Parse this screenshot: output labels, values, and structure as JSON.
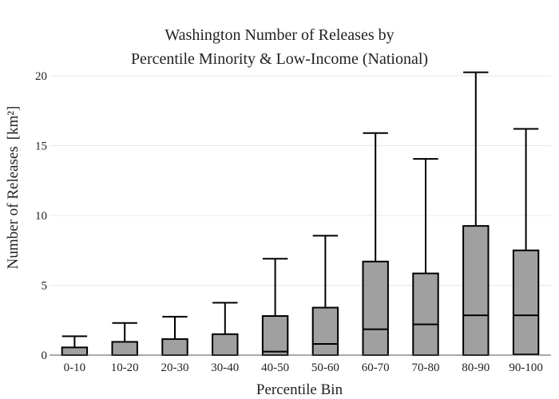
{
  "chart_data": {
    "type": "box",
    "title_lines": [
      "Washington Number of Releases by",
      "Percentile Minority & Low-Income (National)"
    ],
    "xlabel": "Percentile Bin",
    "ylabel": "Number of Releases",
    "ylabel_unit": "[km²]",
    "ylim": [
      0,
      20
    ],
    "yticks": [
      0,
      5,
      10,
      15,
      20
    ],
    "grid": true,
    "legend": "none",
    "box_color": "#a0a0a0",
    "categories": [
      "0-10",
      "10-20",
      "20-30",
      "30-40",
      "40-50",
      "50-60",
      "60-70",
      "70-80",
      "80-90",
      "90-100"
    ],
    "boxes": [
      {
        "q1": 0,
        "median": 0,
        "q3": 0.55,
        "whisker_low": 0,
        "whisker_high": 1.35
      },
      {
        "q1": 0,
        "median": 0,
        "q3": 0.95,
        "whisker_low": 0,
        "whisker_high": 2.3
      },
      {
        "q1": 0,
        "median": 0,
        "q3": 1.15,
        "whisker_low": 0,
        "whisker_high": 2.75
      },
      {
        "q1": 0,
        "median": 0,
        "q3": 1.5,
        "whisker_low": 0,
        "whisker_high": 3.75
      },
      {
        "q1": 0,
        "median": 0.25,
        "q3": 2.8,
        "whisker_low": 0,
        "whisker_high": 6.9
      },
      {
        "q1": 0,
        "median": 0.8,
        "q3": 3.4,
        "whisker_low": 0,
        "whisker_high": 8.55
      },
      {
        "q1": 0,
        "median": 1.85,
        "q3": 6.7,
        "whisker_low": 0,
        "whisker_high": 15.9
      },
      {
        "q1": 0,
        "median": 2.2,
        "q3": 5.85,
        "whisker_low": 0,
        "whisker_high": 14.05
      },
      {
        "q1": 0,
        "median": 2.85,
        "q3": 9.25,
        "whisker_low": 0,
        "whisker_high": 20.25
      },
      {
        "q1": 0.05,
        "median": 2.85,
        "q3": 7.5,
        "whisker_low": 0.05,
        "whisker_high": 16.2
      }
    ]
  }
}
